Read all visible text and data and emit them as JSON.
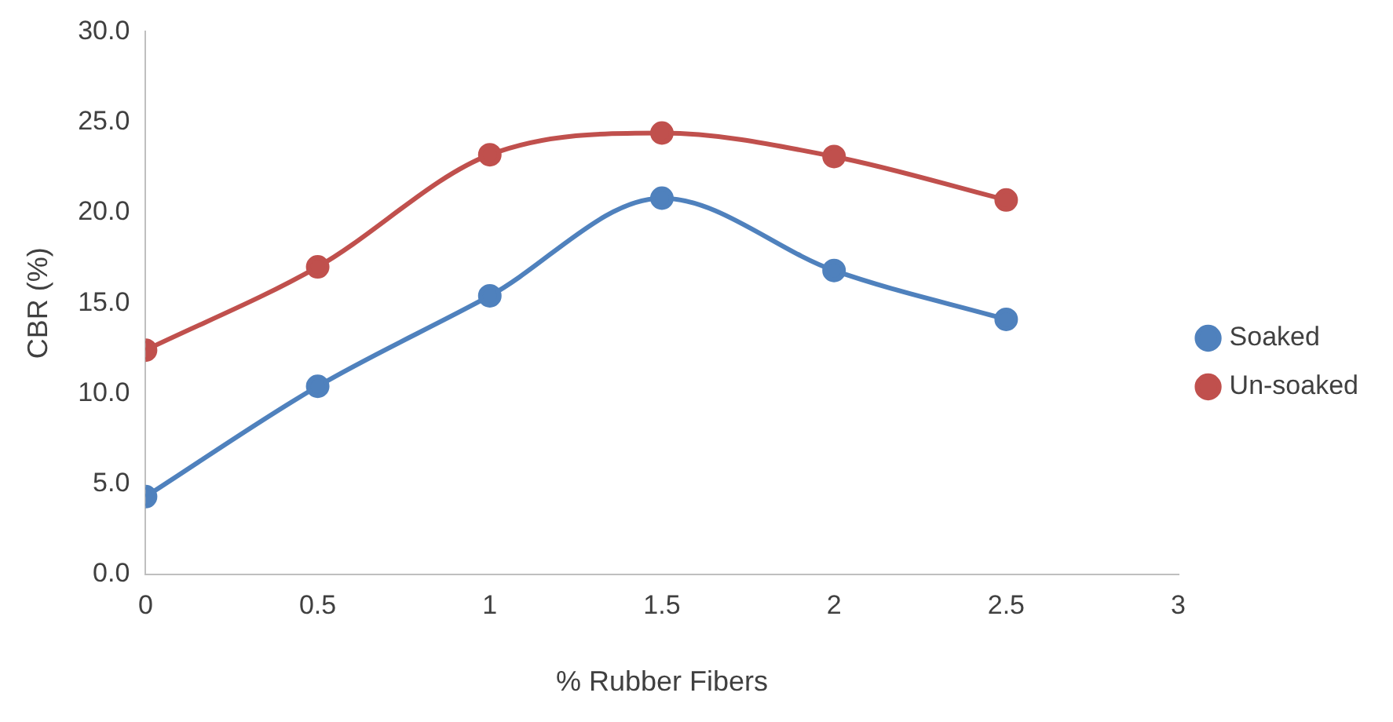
{
  "chart_data": {
    "type": "line",
    "xlabel": "% Rubber Fibers",
    "ylabel": "CBR (%)",
    "x": [
      0,
      0.5,
      1,
      1.5,
      2,
      2.5
    ],
    "series": [
      {
        "name": "Soaked",
        "color": "#4f81bd",
        "values": [
          4.3,
          10.4,
          15.4,
          20.8,
          16.8,
          14.1
        ]
      },
      {
        "name": "Un-soaked",
        "color": "#c0504d",
        "values": [
          12.4,
          17.0,
          23.2,
          24.4,
          23.1,
          20.7
        ]
      }
    ],
    "xlim": [
      0,
      3
    ],
    "xticks": [
      0,
      0.5,
      1,
      1.5,
      2,
      2.5,
      3
    ],
    "ylim": [
      0,
      30
    ],
    "yticks": [
      {
        "value": 0,
        "label": "0.0"
      },
      {
        "value": 5,
        "label": "5.0"
      },
      {
        "value": 10,
        "label": "10.0"
      },
      {
        "value": 15,
        "label": "15.0"
      },
      {
        "value": 20,
        "label": "20.0"
      },
      {
        "value": 25,
        "label": "25.0"
      },
      {
        "value": 30,
        "label": "30.0"
      }
    ],
    "grid": false,
    "legend": "right",
    "marker": "circle",
    "line_style": "solid"
  }
}
